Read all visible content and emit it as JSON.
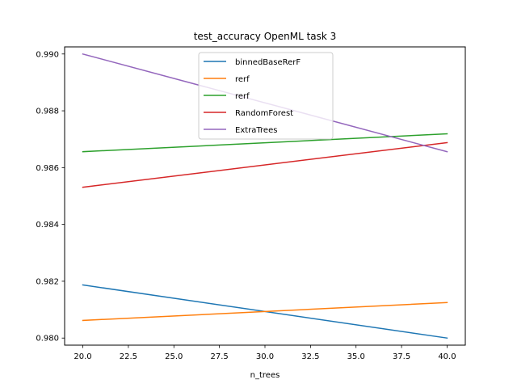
{
  "chart_data": {
    "type": "line",
    "title": "test_accuracy OpenML task 3",
    "xlabel": "n_trees",
    "ylabel": "",
    "xlim": [
      19.0,
      41.0
    ],
    "ylim": [
      0.97975,
      0.99025
    ],
    "xticks": [
      20.0,
      22.5,
      25.0,
      27.5,
      30.0,
      32.5,
      35.0,
      37.5,
      40.0
    ],
    "xtick_labels": [
      "20.0",
      "22.5",
      "25.0",
      "27.5",
      "30.0",
      "32.5",
      "35.0",
      "37.5",
      "40.0"
    ],
    "yticks": [
      0.98,
      0.982,
      0.984,
      0.986,
      0.988,
      0.99
    ],
    "ytick_labels": [
      "0.980",
      "0.982",
      "0.984",
      "0.986",
      "0.988",
      "0.990"
    ],
    "grid": false,
    "legend_position": "top-center",
    "x": [
      20,
      40
    ],
    "series": [
      {
        "name": "binnedBaseRerF",
        "color": "#1f77b4",
        "values": [
          0.98187,
          0.98
        ]
      },
      {
        "name": "rerf",
        "color": "#ff7f0e",
        "values": [
          0.98062,
          0.98125
        ]
      },
      {
        "name": "rerf",
        "color": "#2ca02c",
        "values": [
          0.98656,
          0.98719
        ]
      },
      {
        "name": "RandomForest",
        "color": "#d62728",
        "values": [
          0.98531,
          0.98688
        ]
      },
      {
        "name": "ExtraTrees",
        "color": "#9467bd",
        "values": [
          0.99,
          0.98656
        ]
      }
    ]
  }
}
